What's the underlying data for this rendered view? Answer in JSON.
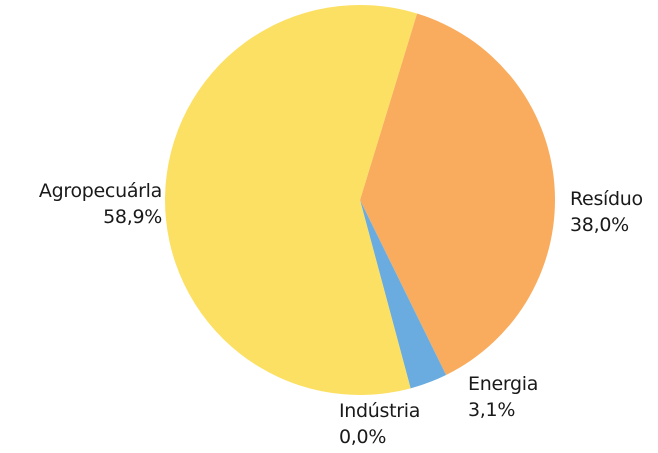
{
  "chart_data": {
    "type": "pie",
    "title": "",
    "slices": [
      {
        "label": "Resíduo",
        "value_label": "38,0%",
        "value": 38.0,
        "color": "#F9AC5E"
      },
      {
        "label": "Energia",
        "value_label": "3,1%",
        "value": 3.1,
        "color": "#6AACDF"
      },
      {
        "label": "Indústria",
        "value_label": "0,0%",
        "value": 0.0,
        "color": "#D9D9D9"
      },
      {
        "label": "Agropecuárla",
        "value_label": "58,9%",
        "value": 58.9,
        "color": "#FCE063"
      }
    ],
    "start_slice": "Resíduo",
    "direction": "clockwise",
    "legend": "none"
  }
}
